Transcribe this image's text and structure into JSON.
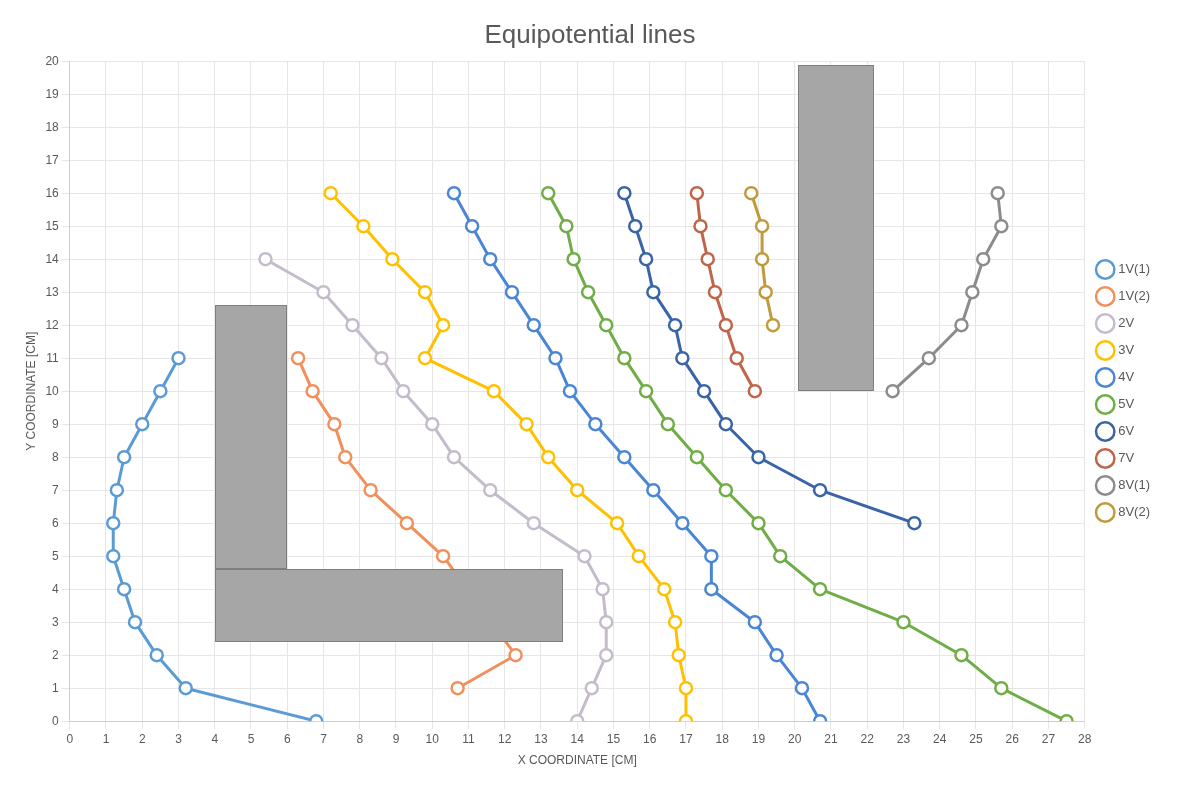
{
  "chart_data": {
    "type": "line",
    "title": "Equipotential lines",
    "xlabel": "X COORDINATE [CM]",
    "ylabel": "Y COORDINATE [CM]",
    "xlim": [
      0,
      28
    ],
    "xticks": [
      0,
      1,
      2,
      3,
      4,
      5,
      6,
      7,
      8,
      9,
      10,
      11,
      12,
      13,
      14,
      15,
      16,
      17,
      18,
      19,
      20,
      21,
      22,
      23,
      24,
      25,
      26,
      27,
      28
    ],
    "ylim": [
      0,
      20
    ],
    "yticks": [
      0,
      1,
      2,
      3,
      4,
      5,
      6,
      7,
      8,
      9,
      10,
      11,
      12,
      13,
      14,
      15,
      16,
      17,
      18,
      19,
      20
    ],
    "grid": true,
    "legend": "right",
    "marker": "circle",
    "series": [
      {
        "name": "1V(1)",
        "color": "#5b9bd5",
        "x": [
          3.0,
          2.5,
          2.0,
          1.5,
          1.3,
          1.2,
          1.2,
          1.5,
          1.8,
          2.4,
          3.2,
          6.8
        ],
        "values": [
          11,
          10,
          9,
          8,
          7,
          6,
          5,
          4,
          3,
          2,
          1,
          0
        ]
      },
      {
        "name": "1V(2)",
        "color": "#f0905c",
        "x": [
          6.3,
          6.7,
          7.3,
          7.6,
          8.3,
          9.3,
          10.3,
          12.3,
          10.7
        ],
        "values": [
          11,
          10,
          9,
          8,
          7,
          6,
          5,
          2,
          1
        ]
      },
      {
        "name": "2V",
        "color": "#c4bccb",
        "x": [
          5.4,
          7.0,
          7.8,
          8.6,
          9.2,
          10.0,
          10.6,
          11.6,
          12.8,
          14.2,
          14.7,
          14.8,
          14.8,
          14.4,
          14.0
        ],
        "values": [
          14,
          13,
          12,
          11,
          10,
          9,
          8,
          7,
          6,
          5,
          4,
          3,
          2,
          1,
          0
        ]
      },
      {
        "name": "3V",
        "color": "#ffc000",
        "x": [
          7.2,
          8.1,
          8.9,
          9.8,
          10.3,
          9.8,
          11.7,
          12.6,
          13.2,
          14.0,
          15.1,
          15.7,
          16.4,
          16.7,
          16.8,
          17.0,
          17.0
        ],
        "values": [
          16,
          15,
          14,
          13,
          12,
          11,
          10,
          9,
          8,
          7,
          6,
          5,
          4,
          3,
          2,
          1,
          0
        ]
      },
      {
        "name": "4V",
        "color": "#4a86d4",
        "x": [
          10.6,
          11.1,
          11.6,
          12.2,
          12.8,
          13.4,
          13.8,
          14.5,
          15.3,
          16.1,
          16.9,
          17.7,
          17.7,
          18.9,
          19.5,
          20.2,
          20.7
        ],
        "values": [
          16,
          15,
          14,
          13,
          12,
          11,
          10,
          9,
          8,
          7,
          6,
          5,
          4,
          3,
          2,
          1,
          0
        ]
      },
      {
        "name": "5V",
        "color": "#70ad47",
        "x": [
          13.2,
          13.7,
          13.9,
          14.3,
          14.8,
          15.3,
          15.9,
          16.5,
          17.3,
          18.1,
          19.0,
          19.6,
          20.7,
          23.0,
          24.6,
          25.7,
          27.5
        ],
        "values": [
          16,
          15,
          14,
          13,
          12,
          11,
          10,
          9,
          8,
          7,
          6,
          5,
          4,
          3,
          2,
          1,
          0
        ]
      },
      {
        "name": "6V",
        "color": "#3a64a8",
        "x": [
          15.3,
          15.6,
          15.9,
          16.1,
          16.7,
          16.9,
          17.5,
          18.1,
          19.0,
          20.7,
          23.3
        ],
        "values": [
          16,
          15,
          14,
          13,
          12,
          11,
          10,
          9,
          8,
          7,
          6
        ]
      },
      {
        "name": "7V",
        "color": "#c0644a",
        "x": [
          17.3,
          17.4,
          17.6,
          17.8,
          18.1,
          18.4,
          18.9
        ],
        "values": [
          16,
          15,
          14,
          13,
          12,
          11,
          10
        ]
      },
      {
        "name": "8V(1)",
        "color": "#8c8c8c",
        "x": [
          25.6,
          25.7,
          25.2,
          24.9,
          24.6,
          23.7,
          22.7
        ],
        "values": [
          16,
          15,
          14,
          13,
          12,
          11,
          10
        ]
      },
      {
        "name": "8V(2)",
        "color": "#c09a3c",
        "x": [
          18.8,
          19.1,
          19.1,
          19.2,
          19.4
        ],
        "values": [
          16,
          15,
          14,
          13,
          12
        ]
      }
    ]
  }
}
